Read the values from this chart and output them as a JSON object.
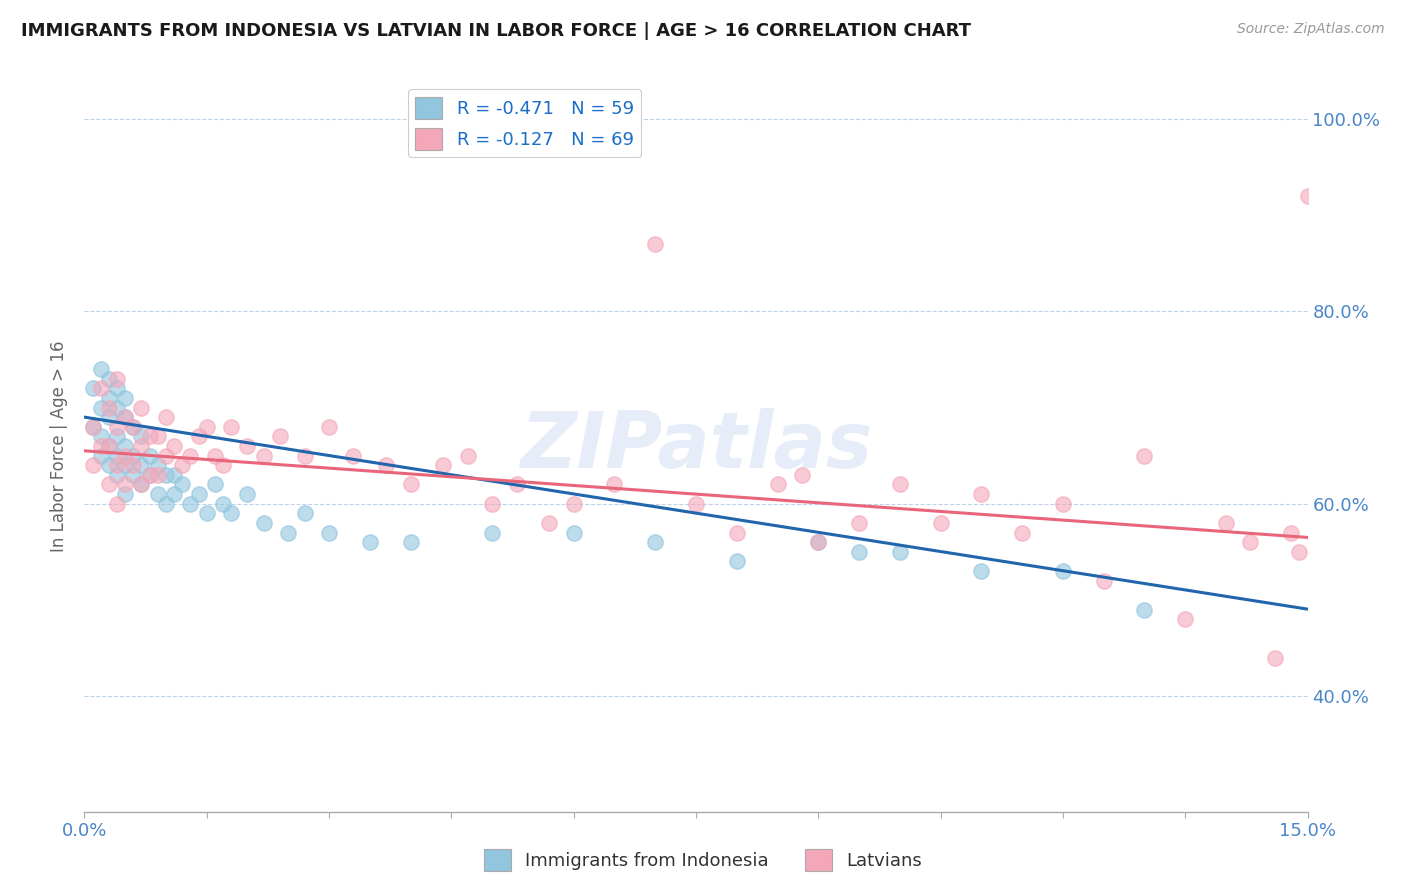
{
  "title": "IMMIGRANTS FROM INDONESIA VS LATVIAN IN LABOR FORCE | AGE > 16 CORRELATION CHART",
  "source_text": "Source: ZipAtlas.com",
  "ylabel": "In Labor Force | Age > 16",
  "xlim": [
    0.0,
    0.15
  ],
  "ylim": [
    0.28,
    1.04
  ],
  "xticks": [
    0.0,
    0.015,
    0.03,
    0.045,
    0.06,
    0.075,
    0.09,
    0.105,
    0.12,
    0.135,
    0.15
  ],
  "yticks": [
    0.4,
    0.6,
    0.8,
    1.0
  ],
  "ytick_labels": [
    "40.0%",
    "60.0%",
    "80.0%",
    "100.0%"
  ],
  "xtick_labels": [
    "0.0%",
    "",
    "",
    "",
    "",
    "",
    "",
    "",
    "",
    "",
    "15.0%"
  ],
  "legend_entry1": "R = -0.471   N = 59",
  "legend_entry2": "R = -0.127   N = 69",
  "legend_label1": "Immigrants from Indonesia",
  "legend_label2": "Latvians",
  "color_blue": "#92c5de",
  "color_pink": "#f4a7b9",
  "color_blue_line": "#2166ac",
  "color_pink_line": "#e8657a",
  "watermark": "ZIPatlas",
  "watermark_color": "#c8d8f0",
  "blue_scatter_x": [
    0.001,
    0.001,
    0.002,
    0.002,
    0.002,
    0.002,
    0.003,
    0.003,
    0.003,
    0.003,
    0.003,
    0.004,
    0.004,
    0.004,
    0.004,
    0.004,
    0.005,
    0.005,
    0.005,
    0.005,
    0.005,
    0.006,
    0.006,
    0.006,
    0.007,
    0.007,
    0.007,
    0.008,
    0.008,
    0.009,
    0.009,
    0.01,
    0.01,
    0.011,
    0.011,
    0.012,
    0.013,
    0.014,
    0.015,
    0.016,
    0.017,
    0.018,
    0.02,
    0.022,
    0.025,
    0.027,
    0.03,
    0.035,
    0.04,
    0.05,
    0.06,
    0.07,
    0.08,
    0.09,
    0.095,
    0.1,
    0.11,
    0.12,
    0.13
  ],
  "blue_scatter_y": [
    0.68,
    0.72,
    0.7,
    0.67,
    0.65,
    0.74,
    0.73,
    0.69,
    0.66,
    0.71,
    0.64,
    0.7,
    0.67,
    0.65,
    0.72,
    0.63,
    0.69,
    0.66,
    0.64,
    0.71,
    0.61,
    0.68,
    0.65,
    0.63,
    0.67,
    0.64,
    0.62,
    0.65,
    0.63,
    0.64,
    0.61,
    0.63,
    0.6,
    0.63,
    0.61,
    0.62,
    0.6,
    0.61,
    0.59,
    0.62,
    0.6,
    0.59,
    0.61,
    0.58,
    0.57,
    0.59,
    0.57,
    0.56,
    0.56,
    0.57,
    0.57,
    0.56,
    0.54,
    0.56,
    0.55,
    0.55,
    0.53,
    0.53,
    0.49
  ],
  "pink_scatter_x": [
    0.001,
    0.001,
    0.002,
    0.002,
    0.003,
    0.003,
    0.003,
    0.004,
    0.004,
    0.004,
    0.004,
    0.005,
    0.005,
    0.005,
    0.006,
    0.006,
    0.007,
    0.007,
    0.007,
    0.008,
    0.008,
    0.009,
    0.009,
    0.01,
    0.01,
    0.011,
    0.012,
    0.013,
    0.014,
    0.015,
    0.016,
    0.017,
    0.018,
    0.02,
    0.022,
    0.024,
    0.027,
    0.03,
    0.033,
    0.037,
    0.04,
    0.044,
    0.047,
    0.05,
    0.053,
    0.057,
    0.06,
    0.065,
    0.07,
    0.075,
    0.08,
    0.085,
    0.088,
    0.09,
    0.095,
    0.1,
    0.105,
    0.11,
    0.115,
    0.12,
    0.125,
    0.13,
    0.135,
    0.14,
    0.143,
    0.146,
    0.148,
    0.149,
    0.15
  ],
  "pink_scatter_y": [
    0.68,
    0.64,
    0.72,
    0.66,
    0.7,
    0.66,
    0.62,
    0.73,
    0.68,
    0.64,
    0.6,
    0.69,
    0.65,
    0.62,
    0.68,
    0.64,
    0.7,
    0.66,
    0.62,
    0.67,
    0.63,
    0.67,
    0.63,
    0.69,
    0.65,
    0.66,
    0.64,
    0.65,
    0.67,
    0.68,
    0.65,
    0.64,
    0.68,
    0.66,
    0.65,
    0.67,
    0.65,
    0.68,
    0.65,
    0.64,
    0.62,
    0.64,
    0.65,
    0.6,
    0.62,
    0.58,
    0.6,
    0.62,
    0.87,
    0.6,
    0.57,
    0.62,
    0.63,
    0.56,
    0.58,
    0.62,
    0.58,
    0.61,
    0.57,
    0.6,
    0.52,
    0.65,
    0.48,
    0.58,
    0.56,
    0.44,
    0.57,
    0.55,
    0.92
  ]
}
